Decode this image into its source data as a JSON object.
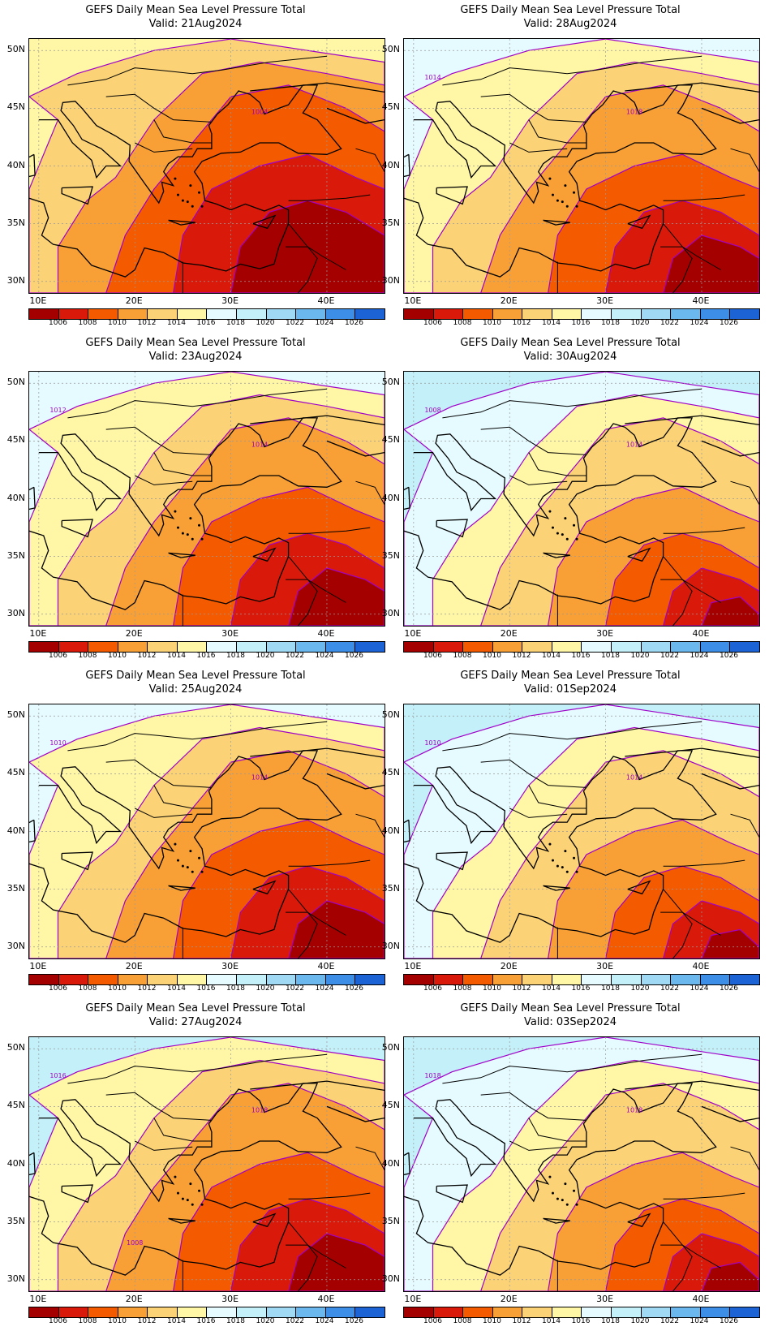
{
  "colors": {
    "c1004": "#a50000",
    "c1006": "#d91a0a",
    "c1008": "#f45a00",
    "c1010": "#f8a035",
    "c1012": "#fbd376",
    "c1014": "#fff7a6",
    "c1016": "#e6fbff",
    "c1018": "#c4f0fa",
    "c1020": "#9fd9f4",
    "c1022": "#6ab8ee",
    "c1024": "#3d8ee6",
    "c1026": "#1c63d6",
    "contour": "#a000c8",
    "coast": "#000000"
  },
  "colorbar": {
    "labels": [
      "1006",
      "1008",
      "1010",
      "1012",
      "1014",
      "1016",
      "1018",
      "1020",
      "1022",
      "1024",
      "1026"
    ],
    "swatches": [
      "c1004",
      "c1006",
      "c1008",
      "c1010",
      "c1012",
      "c1014",
      "c1016",
      "c1018",
      "c1020",
      "c1022",
      "c1024",
      "c1026"
    ]
  },
  "axes": {
    "lat_labels": [
      "50N",
      "45N",
      "40N",
      "35N",
      "30N"
    ],
    "lon_labels": [
      "10E",
      "20E",
      "30E",
      "40E"
    ]
  },
  "panels": [
    {
      "title": "GEFS Daily Mean Sea Level Pressure Total",
      "valid": "Valid: 21Aug2024",
      "contour_labels": [
        "1004"
      ],
      "ring": [
        "c1014",
        "c1012",
        "c1010",
        "c1008",
        "c1006",
        "c1004"
      ]
    },
    {
      "title": "GEFS Daily Mean Sea Level Pressure Total",
      "valid": "Valid: 28Aug2024",
      "contour_labels": [
        "1018",
        "1014"
      ],
      "ring": [
        "c1016",
        "c1014",
        "c1012",
        "c1010",
        "c1008",
        "c1006",
        "c1004"
      ]
    },
    {
      "title": "GEFS Daily Mean Sea Level Pressure Total",
      "valid": "Valid: 23Aug2024",
      "contour_labels": [
        "1014",
        "1012"
      ],
      "ring": [
        "c1016",
        "c1014",
        "c1012",
        "c1010",
        "c1008",
        "c1006",
        "c1004"
      ]
    },
    {
      "title": "GEFS Daily Mean Sea Level Pressure Total",
      "valid": "Valid: 30Aug2024",
      "contour_labels": [
        "1014",
        "1008"
      ],
      "ring": [
        "c1018",
        "c1016",
        "c1014",
        "c1012",
        "c1010",
        "c1008",
        "c1006",
        "c1004"
      ]
    },
    {
      "title": "GEFS Daily Mean Sea Level Pressure Total",
      "valid": "Valid: 25Aug2024",
      "contour_labels": [
        "1014",
        "1010"
      ],
      "ring": [
        "c1016",
        "c1014",
        "c1012",
        "c1010",
        "c1008",
        "c1006",
        "c1004"
      ]
    },
    {
      "title": "GEFS Daily Mean Sea Level Pressure Total",
      "valid": "Valid: 01Sep2024",
      "contour_labels": [
        "1014",
        "1010"
      ],
      "ring": [
        "c1018",
        "c1016",
        "c1014",
        "c1012",
        "c1010",
        "c1008",
        "c1006",
        "c1004"
      ]
    },
    {
      "title": "GEFS Daily Mean Sea Level Pressure Total",
      "valid": "Valid: 27Aug2024",
      "contour_labels": [
        "1018",
        "1016",
        "1008"
      ],
      "ring": [
        "c1018",
        "c1014",
        "c1012",
        "c1010",
        "c1008",
        "c1006",
        "c1004"
      ]
    },
    {
      "title": "GEFS Daily Mean Sea Level Pressure Total",
      "valid": "Valid: 03Sep2024",
      "contour_labels": [
        "1018",
        "1018"
      ],
      "ring": [
        "c1018",
        "c1016",
        "c1014",
        "c1012",
        "c1010",
        "c1008",
        "c1006",
        "c1004"
      ]
    }
  ]
}
